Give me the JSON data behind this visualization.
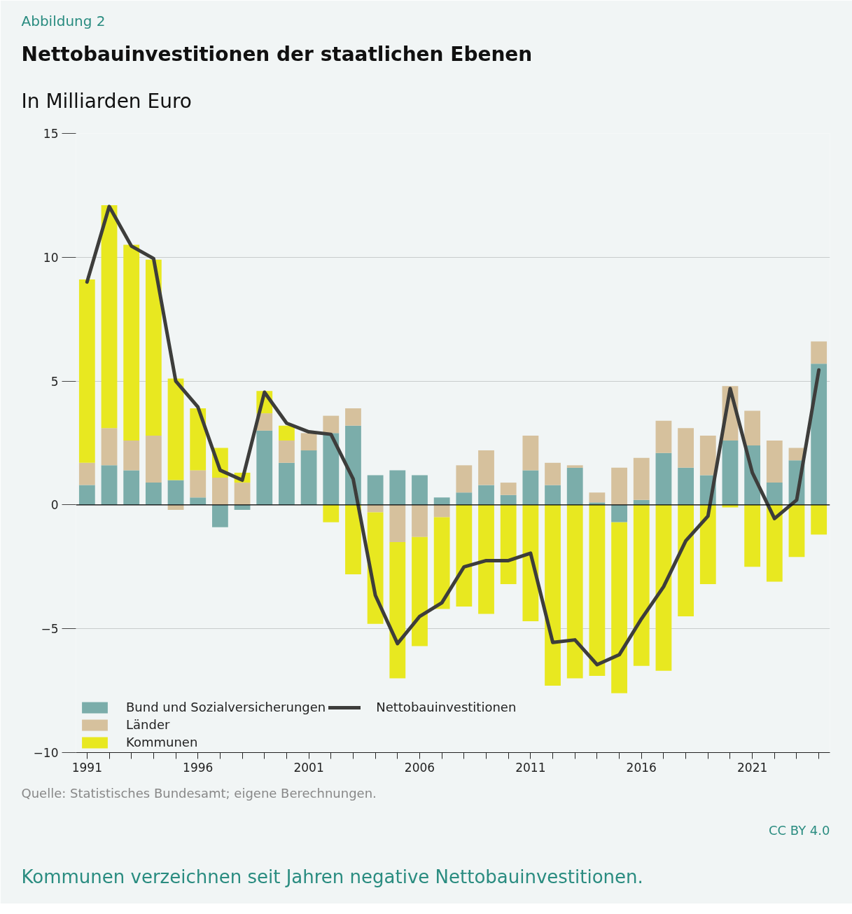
{
  "chart_data": {
    "type": "bar",
    "stacked": true,
    "title": "Nettobauinvestitionen der staatlichen Ebenen",
    "subtitle": "In Milliarden Euro",
    "annotations": [
      "Abbildung 2",
      "Quelle: Statistisches Bundesamt; eigene Berechnungen.",
      "CC BY 4.0",
      "Kommunen verzeichnen seit Jahren negative Nettobauinvestitionen."
    ],
    "x": [
      1991,
      1992,
      1993,
      1994,
      1995,
      1996,
      1997,
      1998,
      1999,
      2000,
      2001,
      2002,
      2003,
      2004,
      2005,
      2006,
      2007,
      2008,
      2009,
      2010,
      2011,
      2012,
      2013,
      2014,
      2015,
      2016,
      2017,
      2018,
      2019,
      2020,
      2021,
      2022,
      2023,
      2024
    ],
    "series": [
      {
        "name": "Bund und Sozialversicherungen",
        "color": "#7badaa",
        "values": [
          0.8,
          1.6,
          1.4,
          0.9,
          1.0,
          0.3,
          -0.9,
          -0.2,
          3.0,
          1.7,
          2.2,
          2.9,
          3.2,
          1.2,
          1.4,
          1.2,
          0.3,
          0.5,
          0.8,
          0.4,
          1.4,
          0.8,
          1.5,
          0.1,
          -0.7,
          0.2,
          2.1,
          1.5,
          1.2,
          2.6,
          2.4,
          0.9,
          1.8,
          5.7
        ]
      },
      {
        "name": "Länder",
        "color": "#d6c19d",
        "values": [
          0.9,
          1.5,
          1.2,
          1.9,
          -0.2,
          1.1,
          1.1,
          0.9,
          0.7,
          0.9,
          0.7,
          0.7,
          0.7,
          -0.3,
          -1.5,
          -1.3,
          -0.5,
          1.1,
          1.4,
          0.5,
          1.4,
          0.9,
          0.1,
          0.4,
          1.5,
          1.7,
          1.3,
          1.6,
          1.6,
          2.2,
          1.4,
          1.7,
          0.5,
          0.9
        ]
      },
      {
        "name": "Kommunen",
        "color": "#e8e820",
        "values": [
          7.4,
          9.0,
          7.9,
          7.1,
          4.1,
          2.5,
          1.2,
          0.4,
          0.9,
          0.6,
          0.0,
          -0.7,
          -2.8,
          -4.5,
          -5.5,
          -4.4,
          -3.7,
          -4.1,
          -4.4,
          -3.2,
          -4.7,
          -7.3,
          -7.0,
          -6.9,
          -6.9,
          -6.5,
          -6.7,
          -4.5,
          -3.2,
          -0.1,
          -2.5,
          -3.1,
          -2.1,
          -1.2
        ]
      },
      {
        "name": "Nettobauinvestitionen",
        "type": "line",
        "color": "#3d3d3b",
        "values": [
          9.0,
          12.05,
          10.45,
          9.95,
          5.0,
          3.95,
          1.4,
          1.0,
          4.55,
          3.3,
          2.95,
          2.85,
          1.05,
          -3.65,
          -5.6,
          -4.5,
          -3.95,
          -2.5,
          -2.25,
          -2.25,
          -1.95,
          -5.55,
          -5.45,
          -6.45,
          -6.05,
          -4.6,
          -3.3,
          -1.45,
          -0.45,
          4.7,
          1.3,
          -0.55,
          0.2,
          5.45
        ]
      }
    ],
    "xlim": [
      1990.5,
      2024.5
    ],
    "xticks": [
      1991,
      {
        "value": 1992,
        "label": null
      },
      {
        "value": 1993,
        "label": null
      },
      {
        "value": 1994,
        "label": null
      },
      {
        "value": 1995,
        "label": null
      },
      1996,
      {
        "value": 1997,
        "label": null
      },
      {
        "value": 1998,
        "label": null
      },
      {
        "value": 1999,
        "label": null
      },
      {
        "value": 2000,
        "label": null
      },
      2001,
      {
        "value": 2002,
        "label": null
      },
      {
        "value": 2003,
        "label": null
      },
      {
        "value": 2004,
        "label": null
      },
      {
        "value": 2005,
        "label": null
      },
      2006,
      {
        "value": 2007,
        "label": null
      },
      {
        "value": 2008,
        "label": null
      },
      {
        "value": 2009,
        "label": null
      },
      {
        "value": 2010,
        "label": null
      },
      2011,
      {
        "value": 2012,
        "label": null
      },
      {
        "value": 2013,
        "label": null
      },
      {
        "value": 2014,
        "label": null
      },
      {
        "value": 2015,
        "label": null
      },
      2016,
      {
        "value": 2017,
        "label": null
      },
      {
        "value": 2018,
        "label": null
      },
      {
        "value": 2019,
        "label": null
      },
      {
        "value": 2020,
        "label": null
      },
      2021,
      {
        "value": 2022,
        "label": null
      },
      {
        "value": 2023,
        "label": null
      },
      {
        "value": 2024,
        "label": null
      }
    ],
    "ylim": [
      -10,
      15
    ],
    "yticks": [
      {
        "value": -10,
        "label": "−10"
      },
      {
        "value": -5,
        "label": "−5"
      },
      0,
      5,
      10,
      15
    ],
    "grid": "y",
    "legend": "bottom left"
  }
}
